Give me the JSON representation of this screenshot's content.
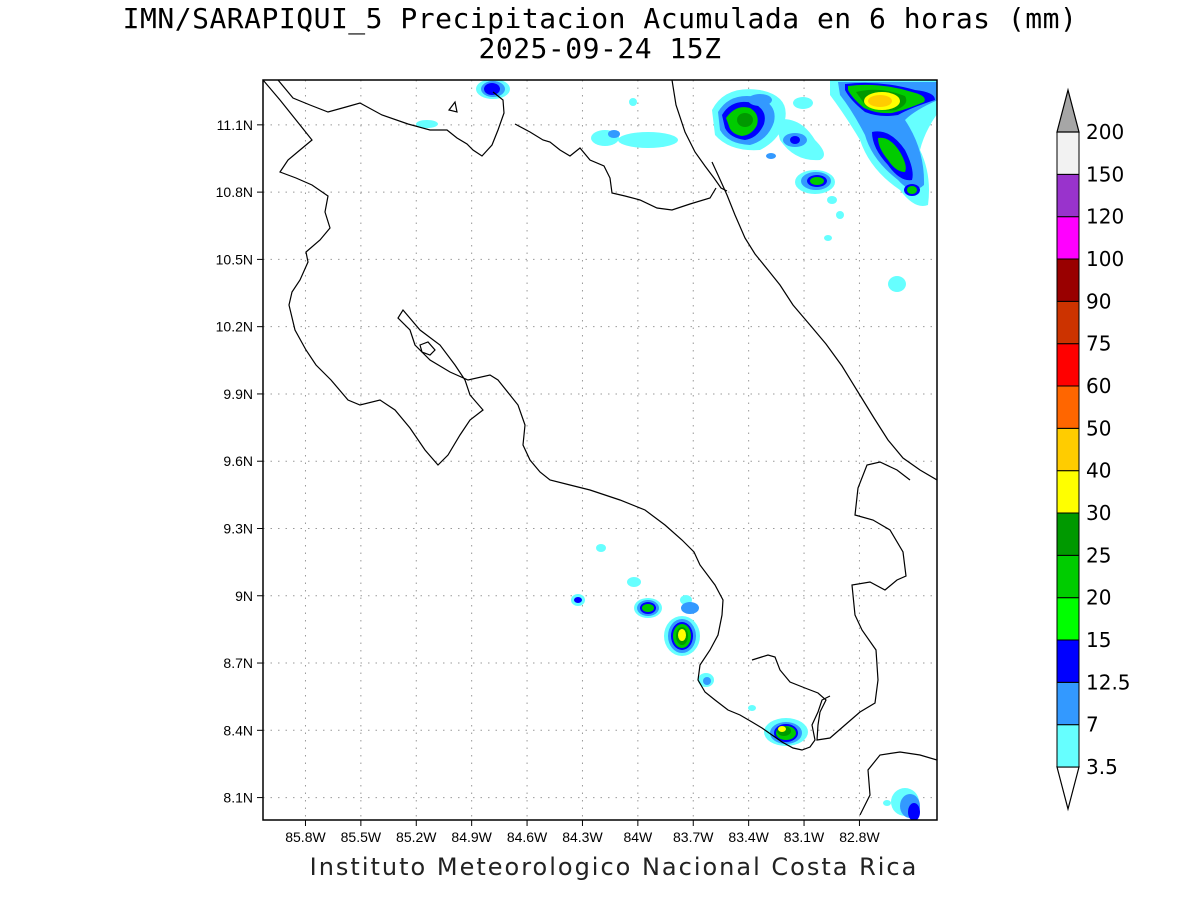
{
  "title": "IMN/SARAPIQUI_5 Precipitacion Acumulada en 6 horas (mm)",
  "subtitle": "2025-09-24 15Z",
  "footer": "Instituto Meteorologico Nacional Costa Rica",
  "map": {
    "lon_range": [
      -86.03,
      -82.38
    ],
    "lat_range": [
      8.0,
      11.3
    ],
    "lon_ticks": [
      "85.8W",
      "85.5W",
      "85.2W",
      "84.9W",
      "84.6W",
      "84.3W",
      "84W",
      "83.7W",
      "83.4W",
      "83.1W",
      "82.8W"
    ],
    "lat_ticks": [
      "11.1N",
      "10.8N",
      "10.5N",
      "10.2N",
      "9.9N",
      "9.6N",
      "9.3N",
      "9N",
      "8.7N",
      "8.4N",
      "8.1N"
    ],
    "grid": true
  },
  "colorbar": {
    "labels": [
      "3.5",
      "7",
      "12.5",
      "15",
      "20",
      "25",
      "30",
      "40",
      "50",
      "60",
      "75",
      "90",
      "100",
      "120",
      "150",
      "200"
    ],
    "colors": [
      "#66ffff",
      "#3399ff",
      "#0000ff",
      "#00ff00",
      "#00cc00",
      "#009900",
      "#ffff00",
      "#ffcc00",
      "#ff6600",
      "#ff0000",
      "#cc3300",
      "#990000",
      "#ff00ff",
      "#9933cc",
      "#f2f2f2",
      "#a6a6a6"
    ]
  }
}
